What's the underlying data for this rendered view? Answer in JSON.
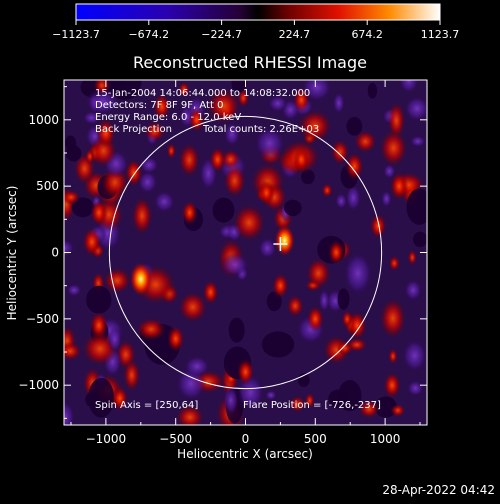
{
  "title": "Reconstructed RHESSI Image",
  "colorbar": {
    "ticks": [
      "-1123.7",
      "-674.2",
      "-224.7",
      "224.7",
      "674.2",
      "1123.7"
    ]
  },
  "overlay": {
    "time": "15-Jan-2004 14:06:44.000 to 14:08:32.000",
    "detectors": "Detectors: 7F 8F 9F, Att 0",
    "energy": "Energy Range: 6.0 - 12.0 keV",
    "method": "Back Projection",
    "counts": "Total counts: 2.26E+03",
    "spin_axis": "Spin Axis = [250,64]",
    "flare_position": "Flare Position = [-726,-237]"
  },
  "footer_timestamp": "28-Apr-2022 04:42",
  "chart_data": {
    "type": "heatmap",
    "title": "Reconstructed RHESSI Image",
    "xlabel": "Heliocentric X (arcsec)",
    "ylabel": "Heliocentric Y (arcsec)",
    "xlim": [
      -1300,
      1300
    ],
    "ylim": [
      -1300,
      1300
    ],
    "x_ticks": [
      -1000,
      -500,
      0,
      500,
      1000
    ],
    "y_ticks": [
      -1000,
      -500,
      0,
      500,
      1000
    ],
    "x_tick_labels": [
      "−1000",
      "−500",
      "0",
      "500",
      "1000"
    ],
    "y_tick_labels": [
      "−1000",
      "−500",
      "0",
      "500",
      "1000"
    ],
    "color_range": [
      -1123.7,
      1123.7
    ],
    "solar_limb_radius_arcsec": 975,
    "marker_cross": [
      250,
      64
    ],
    "hot_spots": [
      {
        "x": -750,
        "y": -200,
        "v": 1100
      },
      {
        "x": 280,
        "y": 90,
        "v": 950
      },
      {
        "x": -1000,
        "y": 900,
        "v": 800
      },
      {
        "x": -800,
        "y": 600,
        "v": 700
      },
      {
        "x": -1100,
        "y": 80,
        "v": 800
      },
      {
        "x": 780,
        "y": 650,
        "v": 750
      },
      {
        "x": 500,
        "y": -500,
        "v": 650
      },
      {
        "x": 1100,
        "y": 500,
        "v": 750
      },
      {
        "x": 800,
        "y": -550,
        "v": 800
      },
      {
        "x": -1050,
        "y": -550,
        "v": 750
      },
      {
        "x": -500,
        "y": -650,
        "v": 650
      },
      {
        "x": -200,
        "y": 700,
        "v": 600
      },
      {
        "x": 400,
        "y": 700,
        "v": 600
      },
      {
        "x": 0,
        "y": -900,
        "v": 650
      },
      {
        "x": -400,
        "y": 300,
        "v": 550
      },
      {
        "x": 250,
        "y": -250,
        "v": 600
      },
      {
        "x": 950,
        "y": 200,
        "v": 600
      },
      {
        "x": -600,
        "y": 1100,
        "v": 650
      },
      {
        "x": 400,
        "y": 1150,
        "v": 600
      },
      {
        "x": 1050,
        "y": -1000,
        "v": 650
      },
      {
        "x": -900,
        "y": -1100,
        "v": 600
      },
      {
        "x": 150,
        "y": 450,
        "v": 600
      },
      {
        "x": -250,
        "y": -300,
        "v": 550
      },
      {
        "x": 650,
        "y": 0,
        "v": 550
      },
      {
        "x": -350,
        "y": 1000,
        "v": 550
      },
      {
        "x": -1050,
        "y": 300,
        "v": 650
      }
    ]
  }
}
